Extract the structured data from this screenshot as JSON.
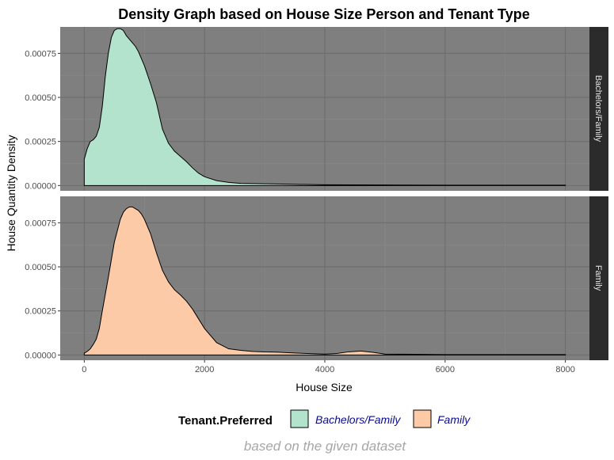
{
  "chart_data": {
    "type": "area",
    "title": "Density Graph based on House Size Person and Tenant Type",
    "xlabel": "House Size",
    "ylabel": "House Quantity Density",
    "caption": "based on the given dataset",
    "xlim": [
      -400,
      8400
    ],
    "ylim": [
      -3e-05,
      0.0009
    ],
    "x_ticks": [
      0,
      2000,
      4000,
      6000,
      8000
    ],
    "x_tick_labels": [
      "0",
      "2000",
      "4000",
      "6000",
      "8000"
    ],
    "y_ticks": [
      0,
      0.00025,
      0.0005,
      0.00075
    ],
    "y_tick_labels": [
      "0.00000",
      "0.00025",
      "0.00050",
      "0.00075"
    ],
    "grid": true,
    "legend": {
      "title": "Tenant.Preferred",
      "position": "bottom",
      "entries": [
        "Bachelors/Family",
        "Family"
      ]
    },
    "panels": [
      {
        "strip": "Bachelors/Family",
        "fill": "#b3e3cc",
        "x": [
          0,
          50,
          100,
          150,
          200,
          250,
          300,
          350,
          400,
          450,
          500,
          550,
          600,
          650,
          700,
          750,
          800,
          850,
          900,
          950,
          1000,
          1100,
          1200,
          1300,
          1400,
          1500,
          1600,
          1700,
          1800,
          1900,
          2000,
          2200,
          2400,
          2600,
          2800,
          3000,
          3500,
          4000,
          5000,
          6000,
          7000,
          8000
        ],
        "y": [
          0.00015,
          0.00021,
          0.00025,
          0.00026,
          0.00028,
          0.00033,
          0.00045,
          0.00062,
          0.00075,
          0.00084,
          0.00088,
          0.00089,
          0.00089,
          0.00088,
          0.00085,
          0.00083,
          0.00081,
          0.00079,
          0.00076,
          0.00072,
          0.00068,
          0.00058,
          0.00047,
          0.00032,
          0.00024,
          0.000195,
          0.000165,
          0.000135,
          0.0001,
          7e-05,
          5e-05,
          2.8e-05,
          1.8e-05,
          1.2e-05,
          1.1e-05,
          1e-05,
          7e-06,
          4e-06,
          3e-06,
          2e-06,
          2e-06,
          2e-06
        ]
      },
      {
        "strip": "Family",
        "fill": "#fdcaa8",
        "x": [
          0,
          50,
          100,
          150,
          200,
          250,
          300,
          400,
          500,
          600,
          650,
          700,
          750,
          800,
          850,
          900,
          950,
          1000,
          1100,
          1200,
          1300,
          1400,
          1500,
          1600,
          1700,
          1800,
          1900,
          2000,
          2200,
          2400,
          2600,
          2800,
          3000,
          3200,
          3500,
          3800,
          4000,
          4200,
          4400,
          4600,
          4800,
          5000,
          6000,
          7000,
          8000
        ],
        "y": [
          1e-05,
          2e-05,
          3.5e-05,
          6e-05,
          9e-05,
          0.00015,
          0.00025,
          0.00044,
          0.00064,
          0.00077,
          0.00081,
          0.00083,
          0.00084,
          0.00084,
          0.00083,
          0.00082,
          0.0008,
          0.00077,
          0.00069,
          0.00058,
          0.00048,
          0.000415,
          0.00037,
          0.00034,
          0.000305,
          0.00026,
          0.000205,
          0.00015,
          7e-05,
          3.5e-05,
          2.6e-05,
          2e-05,
          1.7e-05,
          1.6e-05,
          1.1e-05,
          7e-06,
          5e-06,
          8e-06,
          1.8e-05,
          2.2e-05,
          1.5e-05,
          5e-06,
          2e-06,
          2e-06,
          2e-06
        ]
      }
    ]
  }
}
